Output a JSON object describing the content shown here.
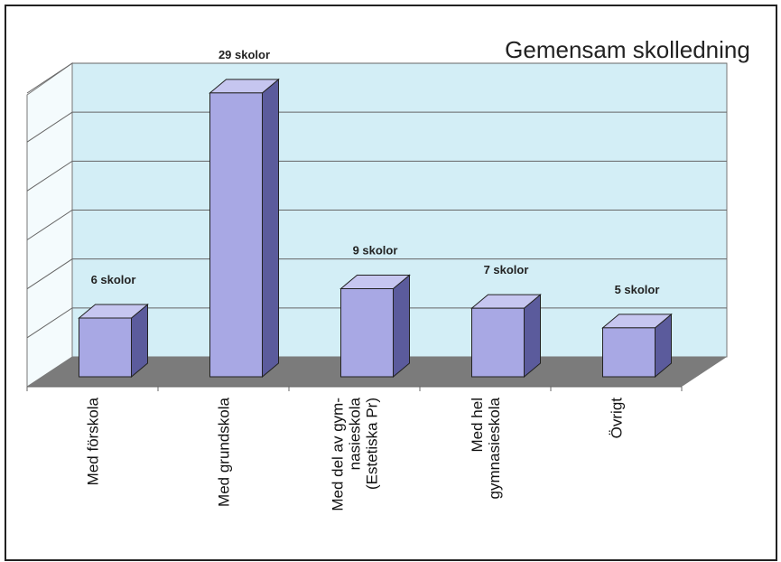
{
  "chart_data": {
    "type": "bar3d",
    "title": "Gemensam skolledning",
    "categories": [
      "Med förskola",
      "Med grundskola",
      "Med del av gym-\nnasieskola\n(Estetiska Pr)",
      "Med hel\ngymnasieskola",
      "Övrigt"
    ],
    "values": [
      6,
      29,
      9,
      7,
      5
    ],
    "value_labels": [
      "6 skolor",
      "29 skolor",
      "9 skolor",
      "7 skolor",
      "5 skolor"
    ],
    "color": "#a8a8e4",
    "ylim": [
      0,
      30
    ],
    "yticks": [
      0,
      5,
      10,
      15,
      20,
      25,
      30
    ],
    "grid": true
  }
}
